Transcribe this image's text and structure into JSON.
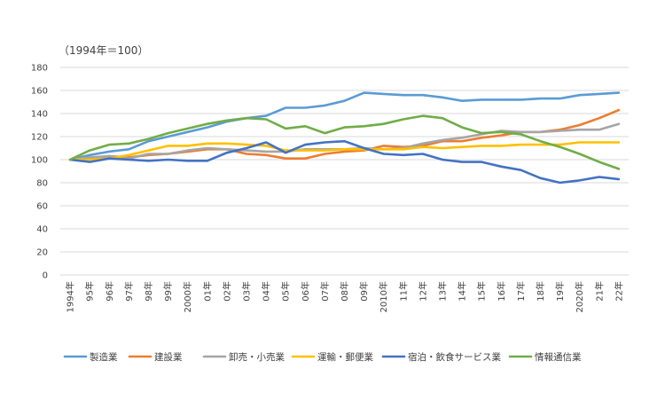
{
  "chart_data": {
    "type": "line",
    "unit_label": "（1994年＝100）",
    "ylim": [
      0,
      180
    ],
    "yticks": [
      0,
      20,
      40,
      60,
      80,
      100,
      120,
      140,
      160,
      180
    ],
    "grid": "horizontal",
    "legend_position": "bottom",
    "categories": [
      "1994年",
      "95年",
      "96年",
      "97年",
      "98年",
      "99年",
      "2000年",
      "01年",
      "02年",
      "03年",
      "04年",
      "05年",
      "06年",
      "07年",
      "08年",
      "09年",
      "2010年",
      "11年",
      "12年",
      "13年",
      "14年",
      "15年",
      "16年",
      "17年",
      "18年",
      "19年",
      "2020年",
      "21年",
      "22年"
    ],
    "series": [
      {
        "name": "製造業",
        "color": "#5B9BD5",
        "values": [
          100,
          104,
          107,
          109,
          116,
          120,
          124,
          128,
          133,
          136,
          138,
          145,
          145,
          147,
          151,
          158,
          157,
          156,
          156,
          154,
          151,
          152,
          152,
          152,
          153,
          153,
          156,
          157,
          158
        ]
      },
      {
        "name": "建設業",
        "color": "#ED7D31",
        "values": [
          100,
          101,
          103,
          102,
          104,
          105,
          107,
          109,
          109,
          105,
          104,
          101,
          101,
          105,
          107,
          108,
          112,
          111,
          112,
          116,
          116,
          119,
          121,
          124,
          124,
          126,
          130,
          136,
          143
        ]
      },
      {
        "name": "卸売・小売業",
        "color": "#A5A5A5",
        "values": [
          100,
          102,
          103,
          101,
          105,
          105,
          108,
          110,
          109,
          108,
          107,
          107,
          109,
          109,
          109,
          110,
          109,
          110,
          114,
          117,
          119,
          122,
          125,
          124,
          124,
          125,
          126,
          126,
          131
        ]
      },
      {
        "name": "運輸・郵便業",
        "color": "#FFC000",
        "values": [
          100,
          100,
          101,
          104,
          108,
          112,
          112,
          114,
          114,
          113,
          112,
          108,
          108,
          108,
          109,
          109,
          109,
          109,
          111,
          110,
          111,
          112,
          112,
          113,
          113,
          113,
          115,
          115,
          115
        ]
      },
      {
        "name": "宿泊・飲食サービス業",
        "color": "#4472C4",
        "values": [
          100,
          98,
          101,
          100,
          99,
          100,
          99,
          99,
          106,
          110,
          115,
          106,
          113,
          115,
          116,
          110,
          105,
          104,
          105,
          100,
          98,
          98,
          94,
          91,
          84,
          80,
          82,
          85,
          83
        ]
      },
      {
        "name": "情報通信業",
        "color": "#70AD47",
        "values": [
          100,
          108,
          113,
          114,
          118,
          123,
          127,
          131,
          134,
          136,
          135,
          127,
          129,
          123,
          128,
          129,
          131,
          135,
          138,
          136,
          128,
          123,
          124,
          122,
          116,
          111,
          105,
          98,
          92
        ]
      }
    ]
  }
}
